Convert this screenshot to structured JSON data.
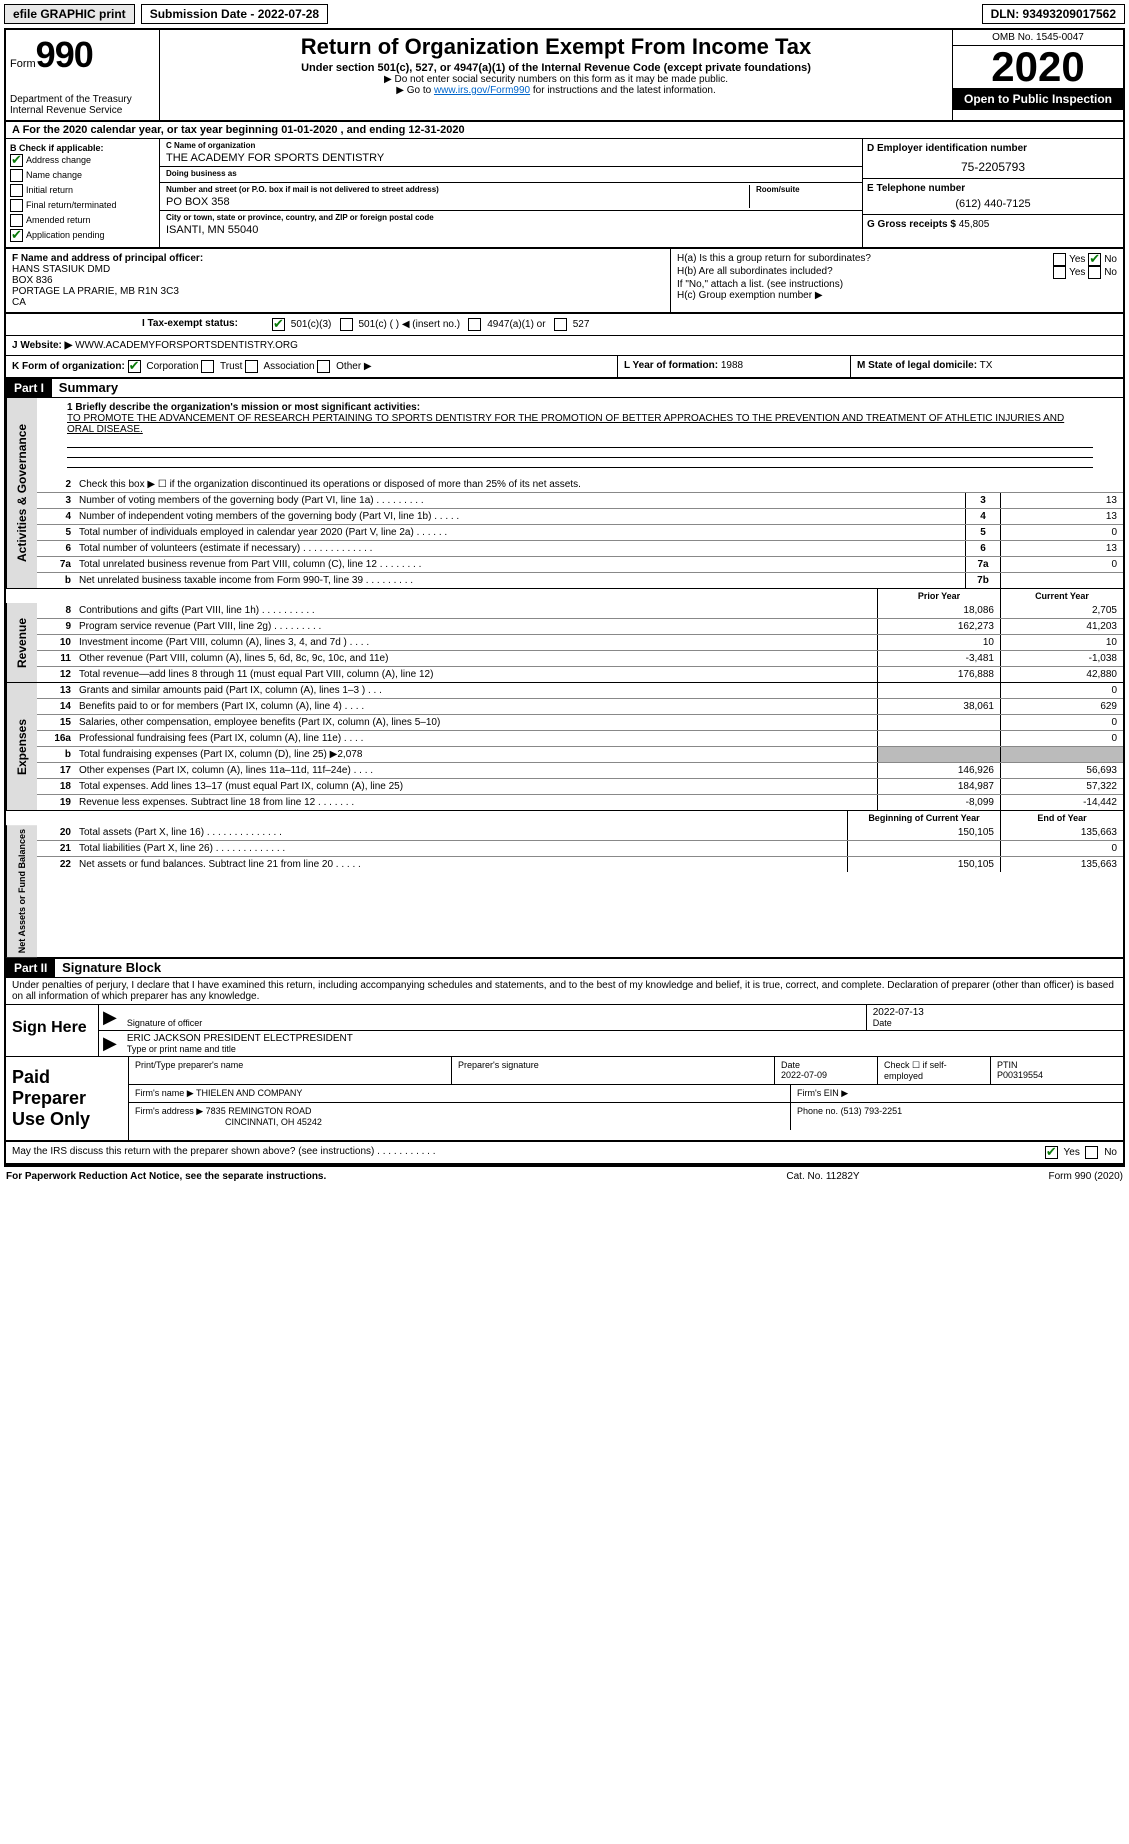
{
  "topbar": {
    "efile": "efile GRAPHIC print",
    "submission": "Submission Date - 2022-07-28",
    "dln": "DLN: 93493209017562"
  },
  "header": {
    "form_label": "Form",
    "form_num": "990",
    "dept": "Department of the Treasury\nInternal Revenue Service",
    "title": "Return of Organization Exempt From Income Tax",
    "subtitle": "Under section 501(c), 527, or 4947(a)(1) of the Internal Revenue Code (except private foundations)",
    "note1": "▶ Do not enter social security numbers on this form as it may be made public.",
    "note2_pre": "▶ Go to ",
    "note2_link": "www.irs.gov/Form990",
    "note2_post": " for instructions and the latest information.",
    "omb": "OMB No. 1545-0047",
    "year": "2020",
    "open": "Open to Public Inspection"
  },
  "period": "A For the 2020 calendar year, or tax year beginning 01-01-2020   , and ending 12-31-2020",
  "section_b": {
    "label": "B Check if applicable:",
    "items": [
      "Address change",
      "Name change",
      "Initial return",
      "Final return/terminated",
      "Amended return",
      "Application pending"
    ],
    "checked": [
      true,
      false,
      false,
      false,
      false,
      false
    ]
  },
  "section_c": {
    "name_lab": "C Name of organization",
    "name": "THE ACADEMY FOR SPORTS DENTISTRY",
    "dba_lab": "Doing business as",
    "dba": "",
    "addr_lab": "Number and street (or P.O. box if mail is not delivered to street address)",
    "addr": "PO BOX 358",
    "room_lab": "Room/suite",
    "city_lab": "City or town, state or province, country, and ZIP or foreign postal code",
    "city": "ISANTI, MN  55040"
  },
  "section_de": {
    "d_lab": "D Employer identification number",
    "d_val": "75-2205793",
    "e_lab": "E Telephone number",
    "e_val": "(612) 440-7125",
    "g_lab": "G Gross receipts $",
    "g_val": "45,805"
  },
  "section_f": {
    "lab": "F  Name and address of principal officer:",
    "name": "HANS STASIUK DMD",
    "addr1": "BOX 836",
    "addr2": "PORTAGE LA PRARIE, MB  R1N 3C3",
    "addr3": "CA"
  },
  "section_h": {
    "ha": "H(a)  Is this a group return for subordinates?",
    "ha_no": "No",
    "hb": "H(b)  Are all subordinates included?",
    "hb_note": "If \"No,\" attach a list. (see instructions)",
    "hc": "H(c)  Group exemption number ▶"
  },
  "section_i": {
    "lab": "I   Tax-exempt status:",
    "opts": [
      "501(c)(3)",
      "501(c) (  ) ◀ (insert no.)",
      "4947(a)(1) or",
      "527"
    ],
    "checked": [
      true,
      false,
      false,
      false
    ]
  },
  "section_j": {
    "lab": "J   Website: ▶",
    "val": "WWW.ACADEMYFORSPORTSDENTISTRY.ORG"
  },
  "section_klm": {
    "k_lab": "K Form of organization:",
    "k_opts": [
      "Corporation",
      "Trust",
      "Association",
      "Other ▶"
    ],
    "k_checked": [
      true,
      false,
      false,
      false
    ],
    "l_lab": "L Year of formation:",
    "l_val": "1988",
    "m_lab": "M State of legal domicile:",
    "m_val": "TX"
  },
  "part1": {
    "header": "Part I",
    "title": "Summary",
    "q1_lab": "1  Briefly describe the organization's mission or most significant activities:",
    "q1_val": "TO PROMOTE THE ADVANCEMENT OF RESEARCH PERTAINING TO SPORTS DENTISTRY FOR THE PROMOTION OF BETTER APPROACHES TO THE PREVENTION AND TREATMENT OF ATHLETIC INJURIES AND ORAL DISEASE.",
    "groups": {
      "gov": "Activities & Governance",
      "rev": "Revenue",
      "exp": "Expenses",
      "net": "Net Assets or Fund Balances"
    },
    "lines_gov": [
      {
        "n": "2",
        "d": "Check this box ▶ ☐ if the organization discontinued its operations or disposed of more than 25% of its net assets."
      },
      {
        "n": "3",
        "d": "Number of voting members of the governing body (Part VI, line 1a)  .    .    .    .    .    .    .    .    .",
        "c": "3",
        "v": "13"
      },
      {
        "n": "4",
        "d": "Number of independent voting members of the governing body (Part VI, line 1b)  .    .    .    .    .",
        "c": "4",
        "v": "13"
      },
      {
        "n": "5",
        "d": "Total number of individuals employed in calendar year 2020 (Part V, line 2a)  .    .    .    .    .    .",
        "c": "5",
        "v": "0"
      },
      {
        "n": "6",
        "d": "Total number of volunteers (estimate if necessary)  .    .    .    .    .    .    .    .    .    .    .    .    .",
        "c": "6",
        "v": "13"
      },
      {
        "n": "7a",
        "d": "Total unrelated business revenue from Part VIII, column (C), line 12  .    .    .    .    .    .    .    .",
        "c": "7a",
        "v": "0"
      },
      {
        "n": "b",
        "d": "Net unrelated business taxable income from Form 990-T, line 39  .    .    .    .    .    .    .    .    .",
        "c": "7b",
        "v": ""
      }
    ],
    "col_headers": {
      "py": "Prior Year",
      "cy": "Current Year"
    },
    "lines_rev": [
      {
        "n": "8",
        "d": "Contributions and gifts (Part VIII, line 1h)  .    .    .    .    .    .    .    .    .    .",
        "py": "18,086",
        "cy": "2,705"
      },
      {
        "n": "9",
        "d": "Program service revenue (Part VIII, line 2g)  .    .    .    .    .    .    .    .    .",
        "py": "162,273",
        "cy": "41,203"
      },
      {
        "n": "10",
        "d": "Investment income (Part VIII, column (A), lines 3, 4, and 7d )  .    .    .    .",
        "py": "10",
        "cy": "10"
      },
      {
        "n": "11",
        "d": "Other revenue (Part VIII, column (A), lines 5, 6d, 8c, 9c, 10c, and 11e)",
        "py": "-3,481",
        "cy": "-1,038"
      },
      {
        "n": "12",
        "d": "Total revenue—add lines 8 through 11 (must equal Part VIII, column (A), line 12)",
        "py": "176,888",
        "cy": "42,880"
      }
    ],
    "lines_exp": [
      {
        "n": "13",
        "d": "Grants and similar amounts paid (Part IX, column (A), lines 1–3 )  .    .    .",
        "py": "",
        "cy": "0"
      },
      {
        "n": "14",
        "d": "Benefits paid to or for members (Part IX, column (A), line 4)  .    .    .    .",
        "py": "38,061",
        "cy": "629"
      },
      {
        "n": "15",
        "d": "Salaries, other compensation, employee benefits (Part IX, column (A), lines 5–10)",
        "py": "",
        "cy": "0"
      },
      {
        "n": "16a",
        "d": "Professional fundraising fees (Part IX, column (A), line 11e)  .    .    .    .",
        "py": "",
        "cy": "0"
      },
      {
        "n": "b",
        "d": "Total fundraising expenses (Part IX, column (D), line 25) ▶2,078",
        "py": "",
        "cy": "",
        "grey": true
      },
      {
        "n": "17",
        "d": "Other expenses (Part IX, column (A), lines 11a–11d, 11f–24e)  .    .    .    .",
        "py": "146,926",
        "cy": "56,693"
      },
      {
        "n": "18",
        "d": "Total expenses. Add lines 13–17 (must equal Part IX, column (A), line 25)",
        "py": "184,987",
        "cy": "57,322"
      },
      {
        "n": "19",
        "d": "Revenue less expenses. Subtract line 18 from line 12  .    .    .    .    .    .    .",
        "py": "-8,099",
        "cy": "-14,442"
      }
    ],
    "net_headers": {
      "py": "Beginning of Current Year",
      "cy": "End of Year"
    },
    "lines_net": [
      {
        "n": "20",
        "d": "Total assets (Part X, line 16)  .    .    .    .    .    .    .    .    .    .    .    .    .    .",
        "py": "150,105",
        "cy": "135,663"
      },
      {
        "n": "21",
        "d": "Total liabilities (Part X, line 26)  .    .    .    .    .    .    .    .    .    .    .    .    .",
        "py": "",
        "cy": "0"
      },
      {
        "n": "22",
        "d": "Net assets or fund balances. Subtract line 21 from line 20  .    .    .    .    .",
        "py": "150,105",
        "cy": "135,663"
      }
    ]
  },
  "part2": {
    "header": "Part II",
    "title": "Signature Block",
    "decl": "Under penalties of perjury, I declare that I have examined this return, including accompanying schedules and statements, and to the best of my knowledge and belief, it is true, correct, and complete. Declaration of preparer (other than officer) is based on all information of which preparer has any knowledge."
  },
  "sign": {
    "label": "Sign Here",
    "sig_lab": "Signature of officer",
    "date": "2022-07-13",
    "date_lab": "Date",
    "name": "ERIC JACKSON  PRESIDENT ELECTPRESIDENT",
    "name_lab": "Type or print name and title"
  },
  "paid": {
    "label": "Paid Preparer Use Only",
    "h1": "Print/Type preparer's name",
    "h2": "Preparer's signature",
    "h3": "Date",
    "h3v": "2022-07-09",
    "h4": "Check ☐ if self-employed",
    "h5": "PTIN",
    "h5v": "P00319554",
    "firm_lab": "Firm's name   ▶",
    "firm": "THIELEN AND COMPANY",
    "ein_lab": "Firm's EIN ▶",
    "addr_lab": "Firm's address ▶",
    "addr1": "7835 REMINGTON ROAD",
    "addr2": "CINCINNATI, OH  45242",
    "phone_lab": "Phone no.",
    "phone": "(513) 793-2251"
  },
  "discuss": {
    "q": "May the IRS discuss this return with the preparer shown above? (see instructions)   .    .    .    .    .    .    .    .    .    .    .",
    "yes": "Yes",
    "no": "No"
  },
  "footer": {
    "l": "For Paperwork Reduction Act Notice, see the separate instructions.",
    "m": "Cat. No. 11282Y",
    "r": "Form 990 (2020)"
  }
}
